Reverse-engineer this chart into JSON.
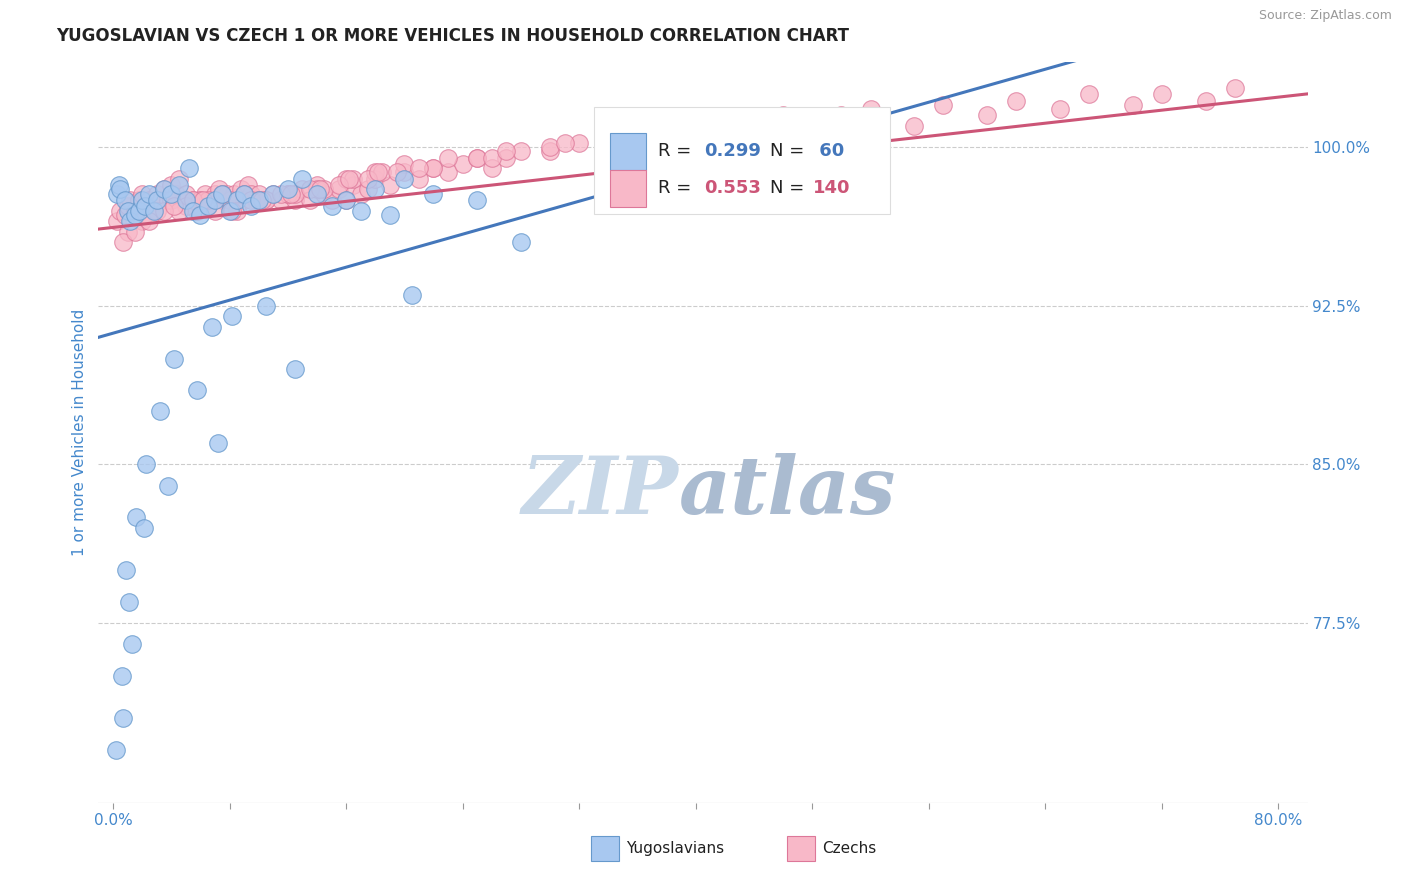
{
  "title": "YUGOSLAVIAN VS CZECH 1 OR MORE VEHICLES IN HOUSEHOLD CORRELATION CHART",
  "source_text": "Source: ZipAtlas.com",
  "ylabel": "1 or more Vehicles in Household",
  "xlim": [
    -1.0,
    82.0
  ],
  "ylim": [
    69.0,
    104.0
  ],
  "yticks": [
    77.5,
    85.0,
    92.5,
    100.0
  ],
  "xticks": [
    0.0,
    8.0,
    16.0,
    24.0,
    32.0,
    40.0,
    48.0,
    56.0,
    64.0,
    72.0,
    80.0
  ],
  "xtick_labels_show": [
    "0.0%",
    "",
    "",
    "",
    "",
    "",
    "",
    "",
    "",
    "",
    "80.0%"
  ],
  "ytick_labels": [
    "77.5%",
    "85.0%",
    "92.5%",
    "100.0%"
  ],
  "blue_fill": "#A8C8F0",
  "blue_edge": "#6699CC",
  "pink_fill": "#F8B8C8",
  "pink_edge": "#DD7799",
  "blue_line_color": "#4477BB",
  "pink_line_color": "#CC5577",
  "legend_blue_label": "Yugoslavians",
  "legend_pink_label": "Czechs",
  "title_color": "#222222",
  "source_color": "#999999",
  "axis_label_color": "#4488CC",
  "tick_label_color": "#4488CC",
  "watermark_zip_color": "#C8D8E8",
  "watermark_atlas_color": "#AABBD0",
  "blue_trend": {
    "slope": 0.195,
    "intercept": 91.2
  },
  "pink_trend": {
    "slope": 0.077,
    "intercept": 96.2
  },
  "blue_scatter_x": [
    0.3,
    0.4,
    0.5,
    0.8,
    1.0,
    1.2,
    1.5,
    1.8,
    2.0,
    2.2,
    2.5,
    2.8,
    3.0,
    3.5,
    4.0,
    4.5,
    5.0,
    5.5,
    6.0,
    6.5,
    7.0,
    7.5,
    8.0,
    8.5,
    9.0,
    9.5,
    10.0,
    11.0,
    12.0,
    13.0,
    14.0,
    15.0,
    16.0,
    17.0,
    18.0,
    19.0,
    20.0,
    22.0,
    25.0,
    5.2,
    0.6,
    1.1,
    0.2,
    0.9,
    1.6,
    2.3,
    3.2,
    4.2,
    5.8,
    6.8,
    8.2,
    10.5,
    0.7,
    1.3,
    2.1,
    3.8,
    7.2,
    12.5,
    20.5,
    28.0
  ],
  "blue_scatter_y": [
    97.8,
    98.2,
    98.0,
    97.5,
    97.0,
    96.5,
    96.8,
    97.0,
    97.5,
    97.2,
    97.8,
    97.0,
    97.5,
    98.0,
    97.8,
    98.2,
    97.5,
    97.0,
    96.8,
    97.2,
    97.5,
    97.8,
    97.0,
    97.5,
    97.8,
    97.2,
    97.5,
    97.8,
    98.0,
    98.5,
    97.8,
    97.2,
    97.5,
    97.0,
    98.0,
    96.8,
    98.5,
    97.8,
    97.5,
    99.0,
    75.0,
    78.5,
    71.5,
    80.0,
    82.5,
    85.0,
    87.5,
    90.0,
    88.5,
    91.5,
    92.0,
    92.5,
    73.0,
    76.5,
    82.0,
    84.0,
    86.0,
    89.5,
    93.0,
    95.5
  ],
  "pink_scatter_x": [
    0.3,
    0.5,
    0.8,
    1.0,
    1.2,
    1.5,
    1.8,
    2.0,
    2.3,
    2.5,
    2.8,
    3.0,
    3.3,
    3.5,
    3.8,
    4.0,
    4.3,
    4.5,
    4.8,
    5.0,
    5.3,
    5.5,
    5.8,
    6.0,
    6.3,
    6.5,
    6.8,
    7.0,
    7.3,
    7.5,
    7.8,
    8.0,
    8.3,
    8.5,
    8.8,
    9.0,
    9.3,
    9.5,
    9.8,
    10.0,
    10.5,
    11.0,
    11.5,
    12.0,
    12.5,
    13.0,
    13.5,
    14.0,
    14.5,
    15.0,
    15.5,
    16.0,
    16.5,
    17.0,
    17.5,
    18.0,
    19.0,
    20.0,
    21.0,
    22.0,
    23.0,
    24.0,
    25.0,
    26.0,
    27.0,
    28.0,
    30.0,
    32.0,
    35.0,
    38.0,
    40.0,
    42.0,
    45.0,
    48.0,
    50.0,
    55.0,
    60.0,
    65.0,
    70.0,
    75.0,
    1.0,
    2.0,
    3.0,
    4.0,
    5.0,
    6.0,
    7.0,
    8.0,
    9.0,
    10.0,
    12.0,
    14.0,
    16.0,
    18.0,
    20.0,
    25.0,
    30.0,
    35.0,
    40.0,
    2.5,
    4.5,
    6.5,
    8.5,
    10.5,
    12.5,
    14.5,
    16.5,
    18.5,
    22.0,
    26.0,
    0.7,
    1.5,
    3.5,
    5.5,
    7.5,
    9.5,
    11.5,
    13.5,
    15.5,
    17.5,
    19.5,
    21.0,
    23.0,
    27.0,
    31.0,
    36.0,
    41.0,
    46.0,
    52.0,
    57.0,
    62.0,
    67.0,
    72.0,
    77.0,
    4.2,
    6.2,
    8.2,
    10.2,
    12.2,
    14.2,
    16.2,
    18.2
  ],
  "pink_scatter_y": [
    96.5,
    97.0,
    96.8,
    97.2,
    97.5,
    97.0,
    97.5,
    97.8,
    97.2,
    97.5,
    97.0,
    97.8,
    97.5,
    98.0,
    97.5,
    98.2,
    97.8,
    98.5,
    97.5,
    97.8,
    97.2,
    97.5,
    97.0,
    97.5,
    97.8,
    97.2,
    97.5,
    97.8,
    98.0,
    97.5,
    97.8,
    97.2,
    97.8,
    97.5,
    98.0,
    97.5,
    98.2,
    97.8,
    97.5,
    97.8,
    97.5,
    97.8,
    97.5,
    97.8,
    97.5,
    98.0,
    97.5,
    98.2,
    97.8,
    97.5,
    98.0,
    97.5,
    98.2,
    97.8,
    98.0,
    98.5,
    98.2,
    98.8,
    98.5,
    99.0,
    98.8,
    99.2,
    99.5,
    99.0,
    99.5,
    99.8,
    99.8,
    100.2,
    100.5,
    100.8,
    101.0,
    100.5,
    101.0,
    101.2,
    101.5,
    101.0,
    101.5,
    101.8,
    102.0,
    102.2,
    96.0,
    96.5,
    97.0,
    97.5,
    97.2,
    97.5,
    97.0,
    97.5,
    97.8,
    97.5,
    97.8,
    98.0,
    98.5,
    98.8,
    99.2,
    99.5,
    100.0,
    100.5,
    101.0,
    96.5,
    97.0,
    97.5,
    97.0,
    97.5,
    97.8,
    98.0,
    98.5,
    98.8,
    99.0,
    99.5,
    95.5,
    96.0,
    97.0,
    97.5,
    97.8,
    97.5,
    97.8,
    98.0,
    98.2,
    98.5,
    98.8,
    99.0,
    99.5,
    99.8,
    100.2,
    100.5,
    101.0,
    101.5,
    101.8,
    102.0,
    102.2,
    102.5,
    102.5,
    102.8,
    97.2,
    97.5,
    97.0,
    97.5,
    97.8,
    98.0,
    98.5,
    98.8
  ]
}
